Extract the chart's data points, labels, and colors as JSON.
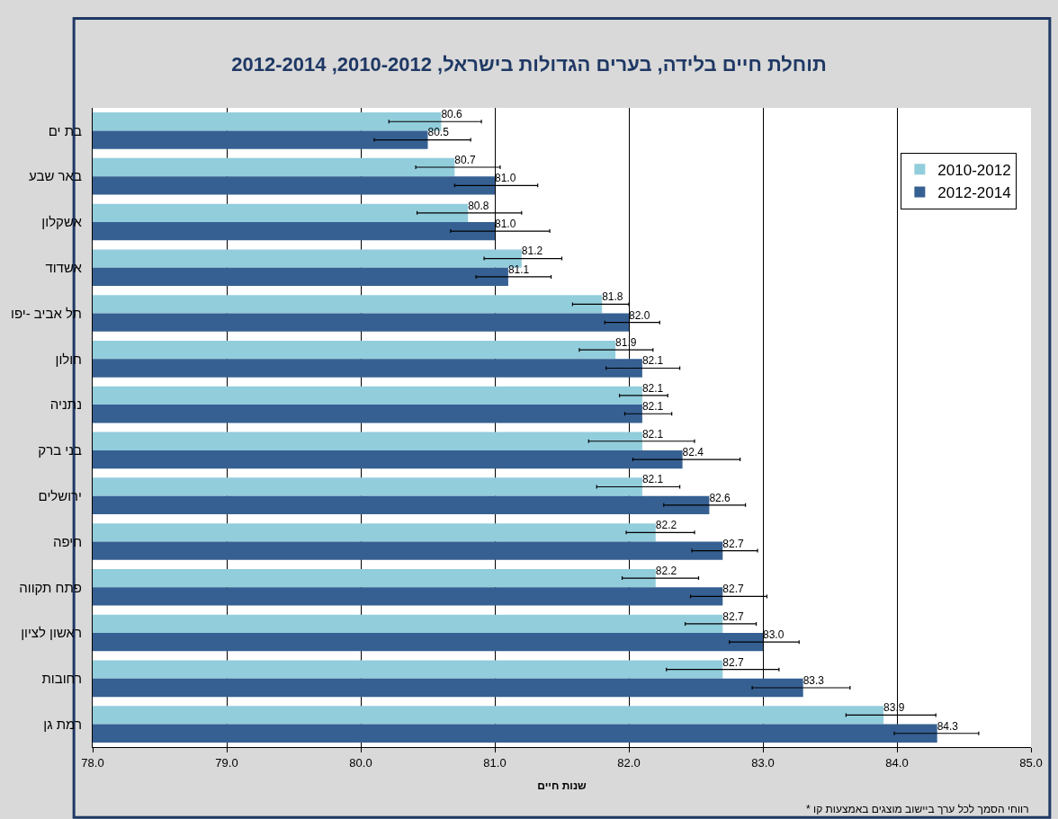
{
  "chart_data": {
    "type": "bar",
    "orientation": "horizontal",
    "title": "תוחלת חיים בלידה, בערים הגדולות בישראל, 2010-2012, 2012-2014",
    "xlabel": "שנות חיים",
    "categories": [
      "בת ים",
      "באר שבע",
      "אשקלון",
      "אשדוד",
      "תל אביב -יפו",
      "חולון",
      "נתניה",
      "בני ברק",
      "ירושלים",
      "חיפה",
      "פתח תקווה",
      "ראשון לציון",
      "רחובות",
      "רמת גן"
    ],
    "series": [
      {
        "name": "2010-2012",
        "color": "#92cddc",
        "values": [
          80.6,
          80.7,
          80.8,
          81.2,
          81.8,
          81.9,
          82.1,
          82.1,
          82.1,
          82.2,
          82.2,
          82.7,
          82.7,
          83.9
        ],
        "value_labels": [
          "80.6",
          "80.7",
          "80.8",
          "81.2",
          "81.8",
          "81.9",
          "82.1",
          "82.1",
          "82.1",
          "82.2",
          "82.2",
          "82.7",
          "82.7",
          "83.9"
        ],
        "errors": [
          [
            80.21,
            80.9
          ],
          [
            80.41,
            81.04
          ],
          [
            80.42,
            81.2
          ],
          [
            80.92,
            81.5
          ],
          [
            81.58,
            82.0
          ],
          [
            81.63,
            82.18
          ],
          [
            81.93,
            82.29
          ],
          [
            81.7,
            82.49
          ],
          [
            81.76,
            82.38
          ],
          [
            81.98,
            82.49
          ],
          [
            81.95,
            82.52
          ],
          [
            82.42,
            82.95
          ],
          [
            82.28,
            83.12
          ],
          [
            83.62,
            84.29
          ]
        ]
      },
      {
        "name": "2012-2014",
        "color": "#366092",
        "values": [
          80.5,
          81.0,
          81.0,
          81.1,
          82.0,
          82.1,
          82.1,
          82.4,
          82.6,
          82.7,
          82.7,
          83.0,
          83.3,
          84.3
        ],
        "value_labels": [
          "80.5",
          "81.0",
          "81.0",
          "81.1",
          "82.0",
          "82.1",
          "82.1",
          "82.4",
          "82.6",
          "82.7",
          "82.7",
          "83.0",
          "83.3",
          "84.3"
        ],
        "errors": [
          [
            80.1,
            80.82
          ],
          [
            80.7,
            81.32
          ],
          [
            80.67,
            81.41
          ],
          [
            80.86,
            81.42
          ],
          [
            81.82,
            82.23
          ],
          [
            81.83,
            82.38
          ],
          [
            81.97,
            82.32
          ],
          [
            82.03,
            82.83
          ],
          [
            82.26,
            82.87
          ],
          [
            82.47,
            82.96
          ],
          [
            82.46,
            83.03
          ],
          [
            82.75,
            83.27
          ],
          [
            82.92,
            83.65
          ],
          [
            83.98,
            84.61
          ]
        ]
      }
    ],
    "xlim": [
      78,
      85
    ],
    "xticks": [
      {
        "value": 78,
        "label": "78.0"
      },
      {
        "value": 79,
        "label": "79.0"
      },
      {
        "value": 80,
        "label": "80.0"
      },
      {
        "value": 81,
        "label": "81.0"
      },
      {
        "value": 82,
        "label": "82.0"
      },
      {
        "value": 83,
        "label": "83.0"
      },
      {
        "value": 84,
        "label": "84.0"
      },
      {
        "value": 85,
        "label": "85.0"
      }
    ],
    "grid": "x",
    "legend": "top right",
    "annotations": [
      "* רווחי הסמך לכל ערך ביישוב מוצגים באמצעות קו"
    ]
  }
}
